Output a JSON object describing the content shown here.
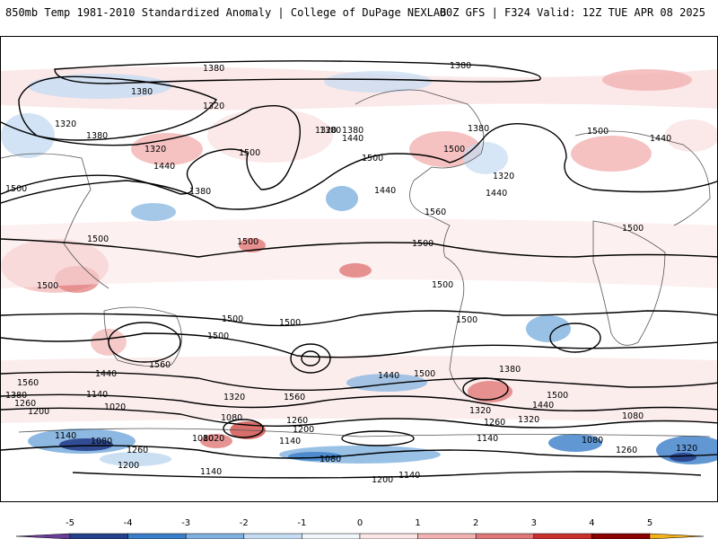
{
  "header": {
    "title": "850mb Temp 1981-2010 Standardized Anomaly | College of DuPage NEXLAB",
    "run_info": "00Z GFS | F324 Valid: 12Z TUE APR 08 2025"
  },
  "map": {
    "projection": "global cylindrical",
    "contour_field": "geopotential height (dam)",
    "contour_labels": [
      "1380",
      "1380",
      "1380",
      "1320",
      "1320",
      "1380",
      "1320",
      "1440",
      "1500",
      "1500",
      "1380",
      "1380",
      "1320",
      "1380",
      "1440",
      "1500",
      "1500",
      "1380",
      "1320",
      "1440",
      "1500",
      "1440",
      "1440",
      "1560",
      "1500",
      "1500",
      "1500",
      "1500",
      "1500",
      "1500",
      "1500",
      "1500",
      "1560",
      "1500",
      "1500",
      "1440",
      "1500",
      "1440",
      "1560",
      "1380",
      "1320",
      "1260",
      "1200",
      "1140",
      "1020",
      "1080",
      "1560",
      "1260",
      "1200",
      "1140",
      "1080",
      "1020",
      "1260",
      "1140",
      "1200",
      "1080",
      "1080",
      "1140",
      "1200",
      "1140",
      "1380",
      "1440",
      "1500",
      "1320",
      "1260",
      "1320",
      "1140",
      "1080",
      "1080",
      "1260",
      "1320"
    ]
  },
  "colorbar": {
    "ticks": [
      "-5",
      "-4",
      "-3",
      "-2",
      "-1",
      "0",
      "1",
      "2",
      "3",
      "4",
      "5"
    ],
    "colors": [
      "#6a3d9a",
      "#27408b",
      "#3a7dc8",
      "#7fb0df",
      "#c5dcf2",
      "#f0f6fc",
      "#fbe6e6",
      "#f2b2b2",
      "#e07878",
      "#c8302c",
      "#8b0000",
      "#f2b01a"
    ]
  }
}
